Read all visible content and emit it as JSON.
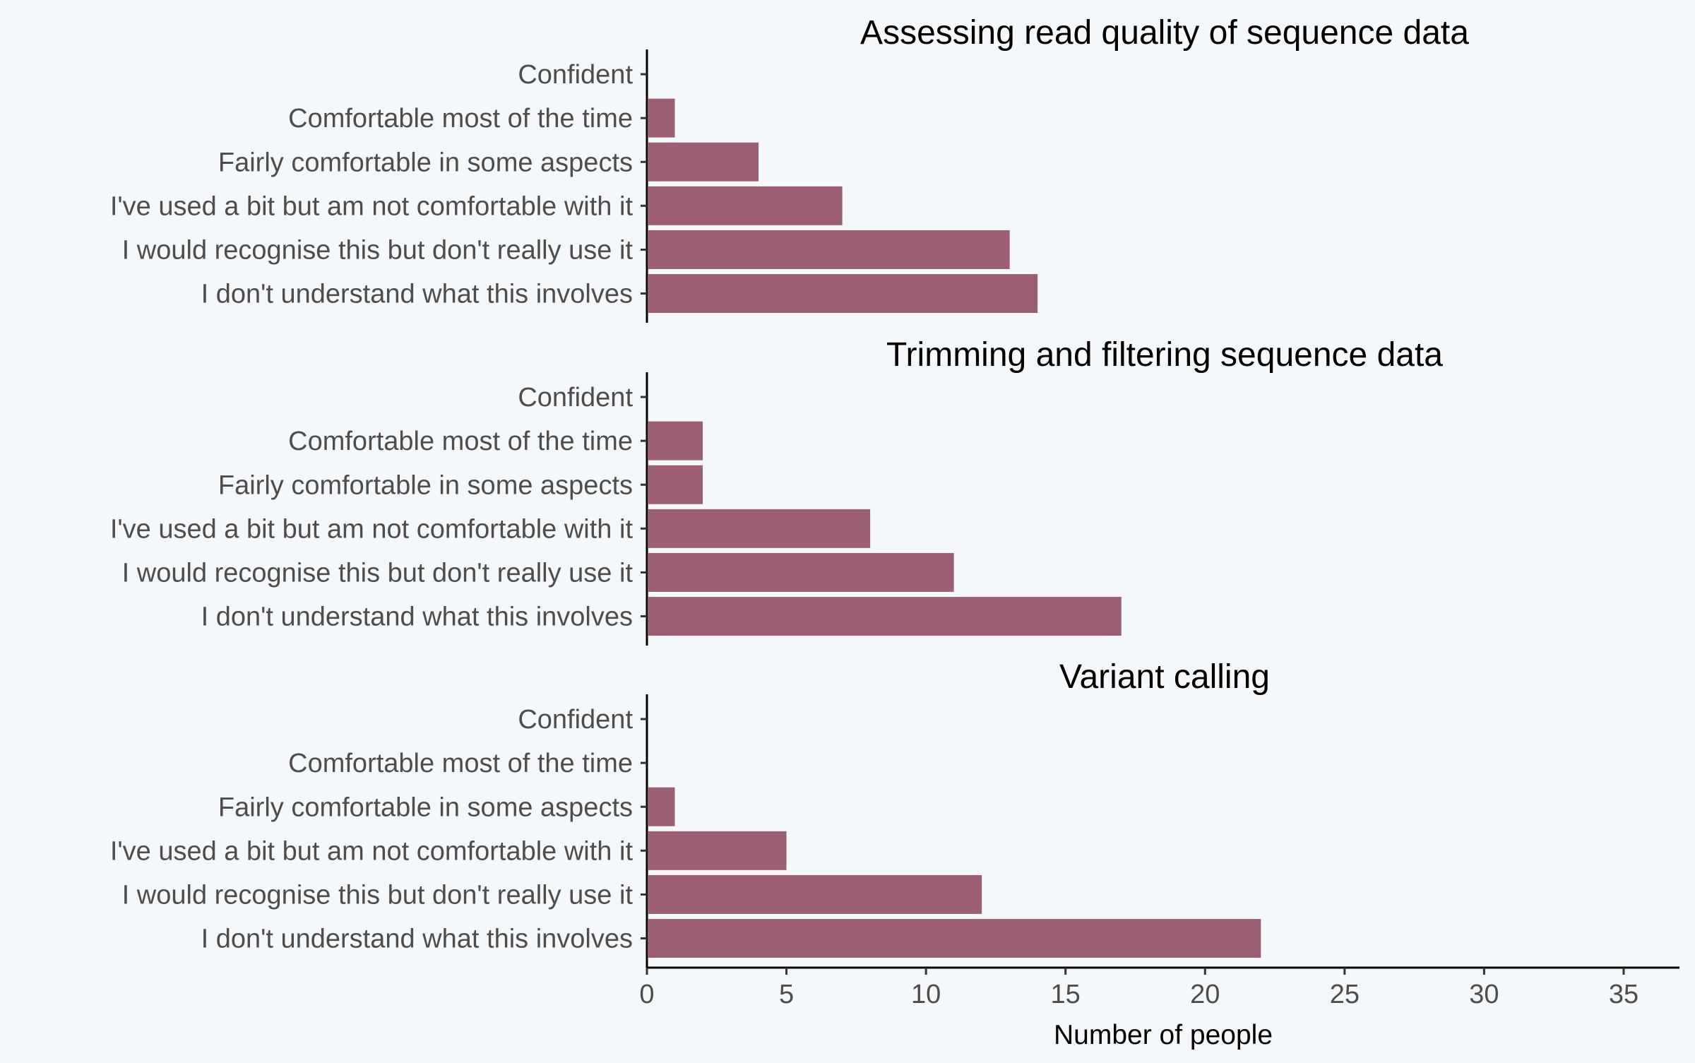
{
  "chart_data": {
    "type": "bar",
    "orientation": "horizontal",
    "bar_color": "#9c5e74",
    "background_color": "#f5f8fb",
    "grid": false,
    "legend": "none",
    "categories": [
      "Confident",
      "Comfortable most of the time",
      "Fairly comfortable in some aspects",
      "I've used a bit but am not comfortable with it",
      "I would recognise this but don't really use it",
      "I don't understand what this involves"
    ],
    "panels": [
      {
        "title": "Assessing read quality of sequence data",
        "values": [
          0,
          1,
          4,
          7,
          13,
          14
        ]
      },
      {
        "title": "Trimming and filtering sequence data",
        "values": [
          0,
          2,
          2,
          8,
          11,
          17
        ]
      },
      {
        "title": "Variant calling",
        "values": [
          0,
          0,
          1,
          5,
          12,
          22
        ]
      }
    ],
    "xlabel": "Number of people",
    "ylabel": "",
    "xlim": [
      0,
      37
    ],
    "xticks": [
      0,
      5,
      10,
      15,
      20,
      25,
      30,
      35
    ]
  }
}
